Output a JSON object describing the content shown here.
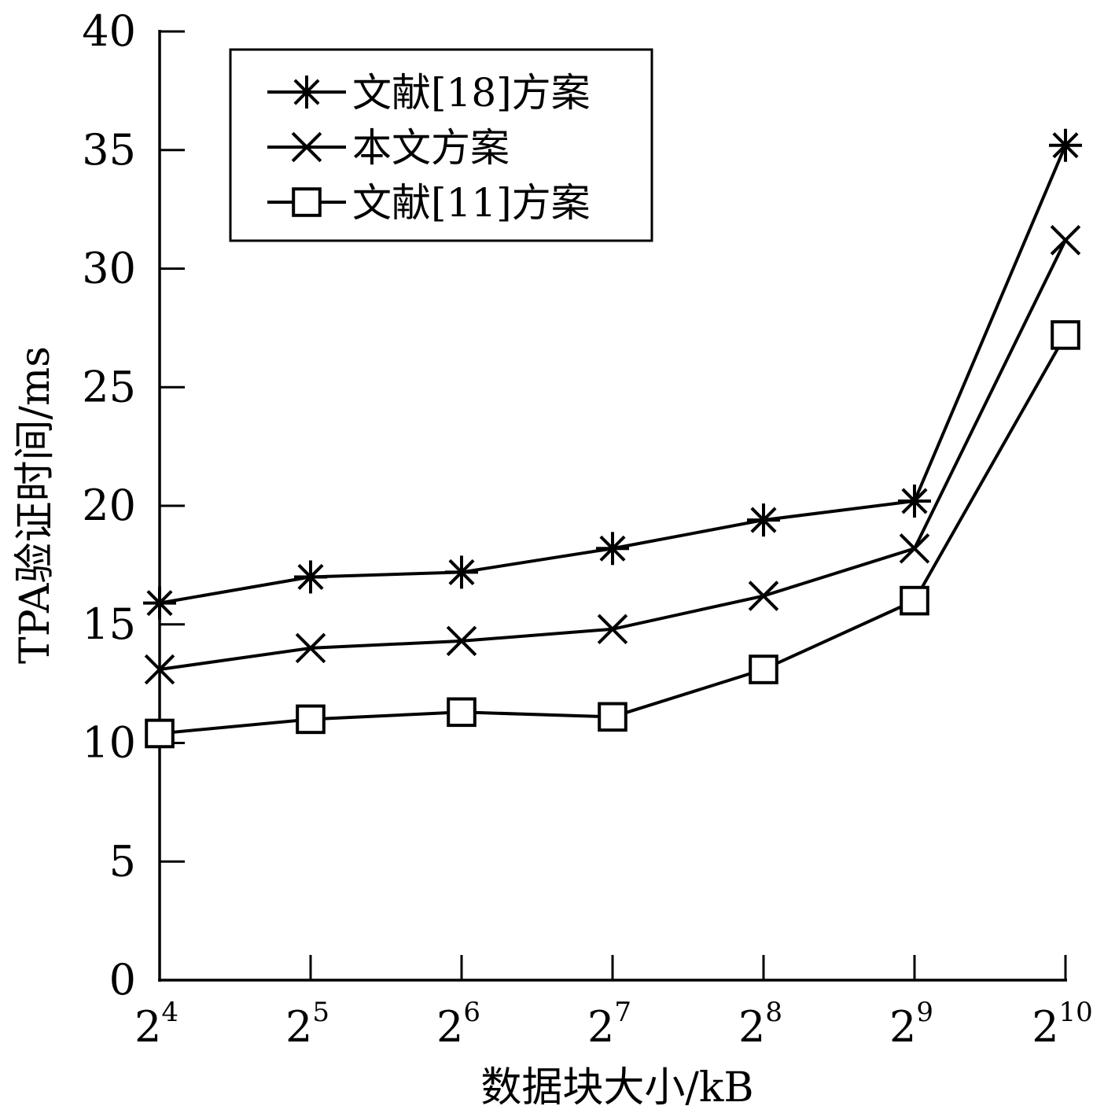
{
  "chart_data": {
    "type": "line",
    "title": "",
    "xlabel": "数据块大小/kB",
    "ylabel": "TPA验证时间/ms",
    "x_ticks": [
      {
        "base": "2",
        "exp": "4"
      },
      {
        "base": "2",
        "exp": "5"
      },
      {
        "base": "2",
        "exp": "6"
      },
      {
        "base": "2",
        "exp": "7"
      },
      {
        "base": "2",
        "exp": "8"
      },
      {
        "base": "2",
        "exp": "9"
      },
      {
        "base": "2",
        "exp": "10"
      }
    ],
    "x_values": [
      16,
      32,
      64,
      128,
      256,
      512,
      1024
    ],
    "x_scale": "log2",
    "ylim": [
      0,
      40
    ],
    "y_ticks": [
      "0",
      "5",
      "10",
      "15",
      "20",
      "25",
      "30",
      "35",
      "40"
    ],
    "grid": false,
    "legend_position": "top-left",
    "series": [
      {
        "name": "文献[18]方案",
        "marker": "asterisk",
        "values": [
          15.9,
          17.0,
          17.2,
          18.2,
          19.4,
          20.2,
          35.2
        ]
      },
      {
        "name": "本文方案",
        "marker": "x",
        "values": [
          13.1,
          14.0,
          14.3,
          14.8,
          16.2,
          18.2,
          31.2
        ]
      },
      {
        "name": "文献[11]方案",
        "marker": "square",
        "values": [
          10.4,
          11.0,
          11.3,
          11.1,
          13.1,
          16.0,
          27.2
        ]
      }
    ],
    "colors": {
      "line": "#000000",
      "background": "#ffffff"
    }
  }
}
